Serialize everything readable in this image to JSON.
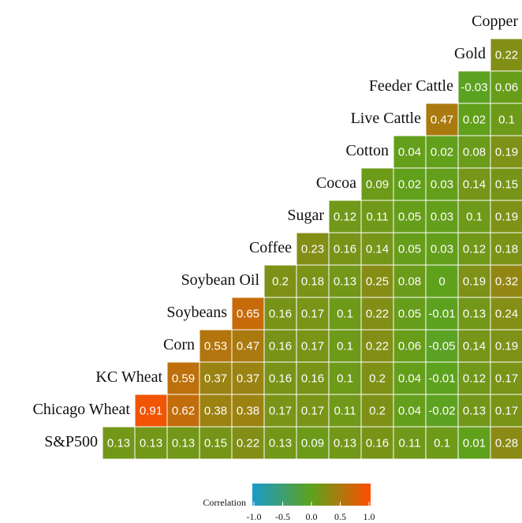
{
  "chart_data": {
    "type": "heatmap",
    "rows": [
      {
        "label": "S&P500",
        "values": [
          0.13,
          0.13,
          0.13,
          0.15,
          0.22,
          0.13,
          0.09,
          0.13,
          0.16,
          0.11,
          0.1,
          0.01,
          0.28
        ]
      },
      {
        "label": "Chicago Wheat",
        "values": [
          0.91,
          0.62,
          0.38,
          0.38,
          0.17,
          0.17,
          0.11,
          0.2,
          0.04,
          -0.02,
          0.13,
          0.17
        ]
      },
      {
        "label": "KC Wheat",
        "values": [
          0.59,
          0.37,
          0.37,
          0.16,
          0.16,
          0.1,
          0.2,
          0.04,
          -0.01,
          0.12,
          0.17
        ]
      },
      {
        "label": "Corn",
        "values": [
          0.53,
          0.47,
          0.16,
          0.17,
          0.1,
          0.22,
          0.06,
          -0.05,
          0.14,
          0.19
        ]
      },
      {
        "label": "Soybeans",
        "values": [
          0.65,
          0.16,
          0.17,
          0.1,
          0.22,
          0.05,
          -0.01,
          0.13,
          0.24
        ]
      },
      {
        "label": "Soybean Oil",
        "values": [
          0.2,
          0.18,
          0.13,
          0.25,
          0.08,
          0,
          0.19,
          0.32
        ]
      },
      {
        "label": "Coffee",
        "values": [
          0.23,
          0.16,
          0.14,
          0.05,
          0.03,
          0.12,
          0.18
        ]
      },
      {
        "label": "Sugar",
        "values": [
          0.12,
          0.11,
          0.05,
          0.03,
          0.1,
          0.19
        ]
      },
      {
        "label": "Cocoa",
        "values": [
          0.09,
          0.02,
          0.03,
          0.14,
          0.15
        ]
      },
      {
        "label": "Cotton",
        "values": [
          0.04,
          0.02,
          0.08,
          0.19
        ]
      },
      {
        "label": "Live Cattle",
        "values": [
          0.47,
          0.02,
          0.1
        ]
      },
      {
        "label": "Feeder Cattle",
        "values": [
          -0.03,
          0.06
        ]
      },
      {
        "label": "Gold",
        "values": [
          0.22
        ]
      },
      {
        "label": "Copper",
        "values": []
      }
    ],
    "colorbar": {
      "title": "Correlation",
      "lim": [
        -1,
        1
      ],
      "ticks": [
        {
          "value": -1,
          "label": "-1.0"
        },
        {
          "value": -0.5,
          "label": "-0.5"
        },
        {
          "value": 0,
          "label": "0.0"
        },
        {
          "value": 0.5,
          "label": "0.5"
        },
        {
          "value": 1,
          "label": "1.0"
        }
      ],
      "colors": [
        "#1a9bcb",
        "#5ea21c",
        "#ff4d00"
      ]
    }
  }
}
